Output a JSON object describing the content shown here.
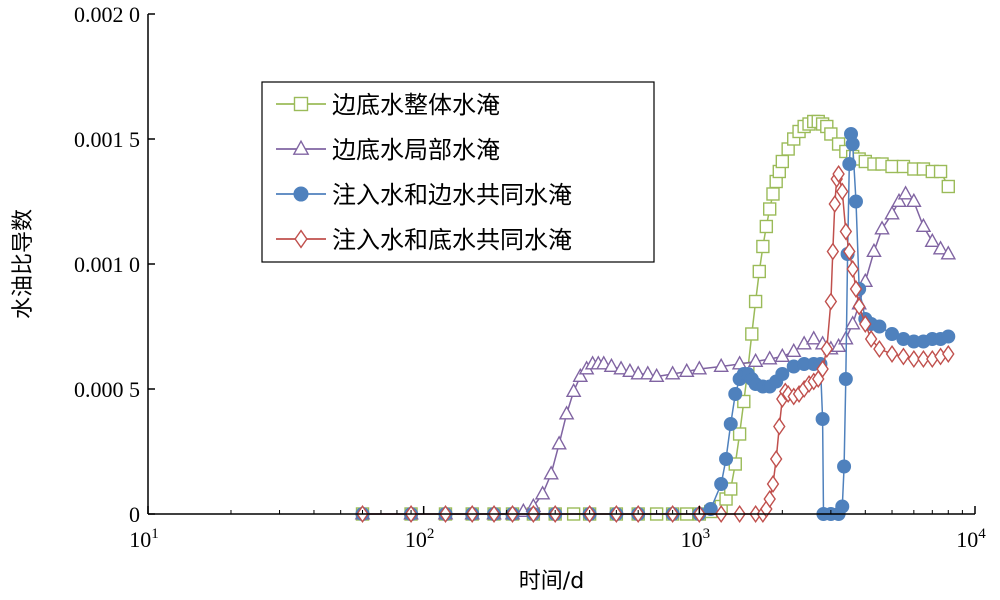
{
  "chart_data": {
    "type": "scatter",
    "title": "",
    "xlabel": "时间/d",
    "ylabel": "水油比导数",
    "xscale": "log",
    "xlim": [
      10,
      10000
    ],
    "ylim": [
      0,
      0.002
    ],
    "x_ticks": [
      {
        "value": 10,
        "base": "10",
        "exp": "1"
      },
      {
        "value": 100,
        "base": "10",
        "exp": "2"
      },
      {
        "value": 1000,
        "base": "10",
        "exp": "3"
      },
      {
        "value": 10000,
        "base": "10",
        "exp": "4"
      }
    ],
    "y_ticks": [
      {
        "value": 0,
        "label": "0"
      },
      {
        "value": 0.0005,
        "label": "0.000 5"
      },
      {
        "value": 0.001,
        "label": "0.001 0"
      },
      {
        "value": 0.0015,
        "label": "0.001 5"
      },
      {
        "value": 0.002,
        "label": "0.002 0"
      }
    ],
    "grid": false,
    "legend_position": "top-left",
    "series": [
      {
        "name": "边底水整体水淹",
        "color": "#9bbb59",
        "marker": "square",
        "x": [
          60,
          90,
          120,
          150,
          180,
          210,
          250,
          300,
          350,
          400,
          500,
          600,
          700,
          800,
          900,
          1000,
          1100,
          1200,
          1250,
          1300,
          1350,
          1400,
          1450,
          1500,
          1550,
          1600,
          1650,
          1700,
          1750,
          1800,
          1850,
          1900,
          1950,
          2000,
          2100,
          2200,
          2300,
          2400,
          2500,
          2600,
          2700,
          2800,
          2900,
          3000,
          3200,
          3400,
          3600,
          3800,
          4000,
          4300,
          4600,
          5000,
          5500,
          6000,
          6500,
          7000,
          7500,
          8000
        ],
        "y": [
          0,
          0,
          0,
          0,
          0,
          0,
          0,
          0,
          0,
          0,
          0,
          0,
          0,
          0,
          0,
          0,
          1e-05,
          3e-05,
          6e-05,
          0.0001,
          0.0002,
          0.00032,
          0.00045,
          0.00058,
          0.00072,
          0.00085,
          0.00097,
          0.00107,
          0.00115,
          0.00122,
          0.00128,
          0.00133,
          0.00137,
          0.00141,
          0.00146,
          0.0015,
          0.00153,
          0.00155,
          0.00156,
          0.00157,
          0.00157,
          0.00156,
          0.00155,
          0.00152,
          0.00148,
          0.00145,
          0.00143,
          0.00142,
          0.00141,
          0.0014,
          0.0014,
          0.00139,
          0.00139,
          0.00138,
          0.00138,
          0.00137,
          0.00137,
          0.00131
        ]
      },
      {
        "name": "边底水局部水淹",
        "color": "#8064a2",
        "marker": "triangle",
        "x": [
          60,
          90,
          120,
          150,
          180,
          210,
          230,
          250,
          270,
          290,
          310,
          330,
          350,
          370,
          390,
          410,
          430,
          450,
          480,
          520,
          560,
          600,
          650,
          700,
          800,
          900,
          1000,
          1200,
          1400,
          1600,
          1800,
          2000,
          2200,
          2400,
          2600,
          2800,
          3000,
          3200,
          3400,
          3600,
          3800,
          4000,
          4300,
          4600,
          5000,
          5300,
          5600,
          6000,
          6500,
          7000,
          7500,
          8000
        ],
        "y": [
          0,
          0,
          0,
          0,
          0,
          0,
          1e-05,
          3e-05,
          8e-05,
          0.00016,
          0.00028,
          0.0004,
          0.00049,
          0.00055,
          0.00058,
          0.0006,
          0.0006,
          0.0006,
          0.00059,
          0.00058,
          0.00057,
          0.00056,
          0.00056,
          0.00055,
          0.00056,
          0.00057,
          0.00058,
          0.00059,
          0.0006,
          0.00061,
          0.00062,
          0.00063,
          0.00065,
          0.00068,
          0.0007,
          0.00068,
          0.00066,
          0.00067,
          0.0007,
          0.00076,
          0.00084,
          0.00093,
          0.00105,
          0.00114,
          0.0012,
          0.00125,
          0.00128,
          0.00125,
          0.00115,
          0.00109,
          0.00106,
          0.00104
        ]
      },
      {
        "name": "注入水和边水共同水淹",
        "color": "#4f81bd",
        "marker": "circle",
        "x": [
          60,
          90,
          120,
          150,
          180,
          210,
          250,
          300,
          400,
          500,
          600,
          800,
          1000,
          1100,
          1200,
          1250,
          1300,
          1350,
          1400,
          1450,
          1500,
          1550,
          1600,
          1700,
          1800,
          1900,
          2000,
          2200,
          2400,
          2600,
          2750,
          2800,
          2820,
          3000,
          3200,
          3300,
          3350,
          3400,
          3450,
          3500,
          3550,
          3600,
          3700,
          3800,
          4000,
          4200,
          4500,
          5000,
          5500,
          6000,
          6500,
          7000,
          7500,
          8000
        ],
        "y": [
          0,
          0,
          0,
          0,
          0,
          0,
          0,
          0,
          0,
          0,
          0,
          0,
          0,
          2e-05,
          0.00012,
          0.00022,
          0.00036,
          0.00048,
          0.00054,
          0.00056,
          0.00056,
          0.00054,
          0.00052,
          0.00051,
          0.00051,
          0.00053,
          0.00056,
          0.00059,
          0.0006,
          0.0006,
          0.0006,
          0.00038,
          0,
          0,
          0,
          3e-05,
          0.00019,
          0.00054,
          0.00104,
          0.0014,
          0.00152,
          0.00148,
          0.00125,
          0.0009,
          0.00078,
          0.00076,
          0.00075,
          0.00072,
          0.0007,
          0.00069,
          0.00069,
          0.0007,
          0.0007,
          0.00071
        ]
      },
      {
        "name": "注入水和底水共同水淹",
        "color": "#c0504d",
        "marker": "diamond",
        "x": [
          60,
          90,
          120,
          150,
          180,
          210,
          250,
          300,
          400,
          500,
          600,
          800,
          1000,
          1200,
          1400,
          1600,
          1700,
          1750,
          1800,
          1850,
          1900,
          1950,
          2000,
          2050,
          2100,
          2200,
          2300,
          2400,
          2500,
          2600,
          2700,
          2800,
          2900,
          3000,
          3050,
          3100,
          3150,
          3200,
          3300,
          3400,
          3500,
          3600,
          3700,
          3800,
          4000,
          4200,
          4500,
          5000,
          5500,
          6000,
          6500,
          7000,
          7500,
          8000
        ],
        "y": [
          0,
          0,
          0,
          0,
          0,
          0,
          0,
          0,
          0,
          0,
          0,
          0,
          0,
          0,
          0,
          0,
          0,
          2e-05,
          6e-05,
          0.00012,
          0.00022,
          0.00035,
          0.00046,
          0.00049,
          0.00048,
          0.00047,
          0.00048,
          0.0005,
          0.00052,
          0.00053,
          0.00054,
          0.00058,
          0.00066,
          0.00085,
          0.00105,
          0.00124,
          0.00134,
          0.00136,
          0.00129,
          0.00113,
          0.00105,
          0.00098,
          0.0009,
          0.00083,
          0.00076,
          0.0007,
          0.00066,
          0.00064,
          0.00063,
          0.00062,
          0.00062,
          0.00062,
          0.00063,
          0.00064
        ]
      }
    ]
  }
}
